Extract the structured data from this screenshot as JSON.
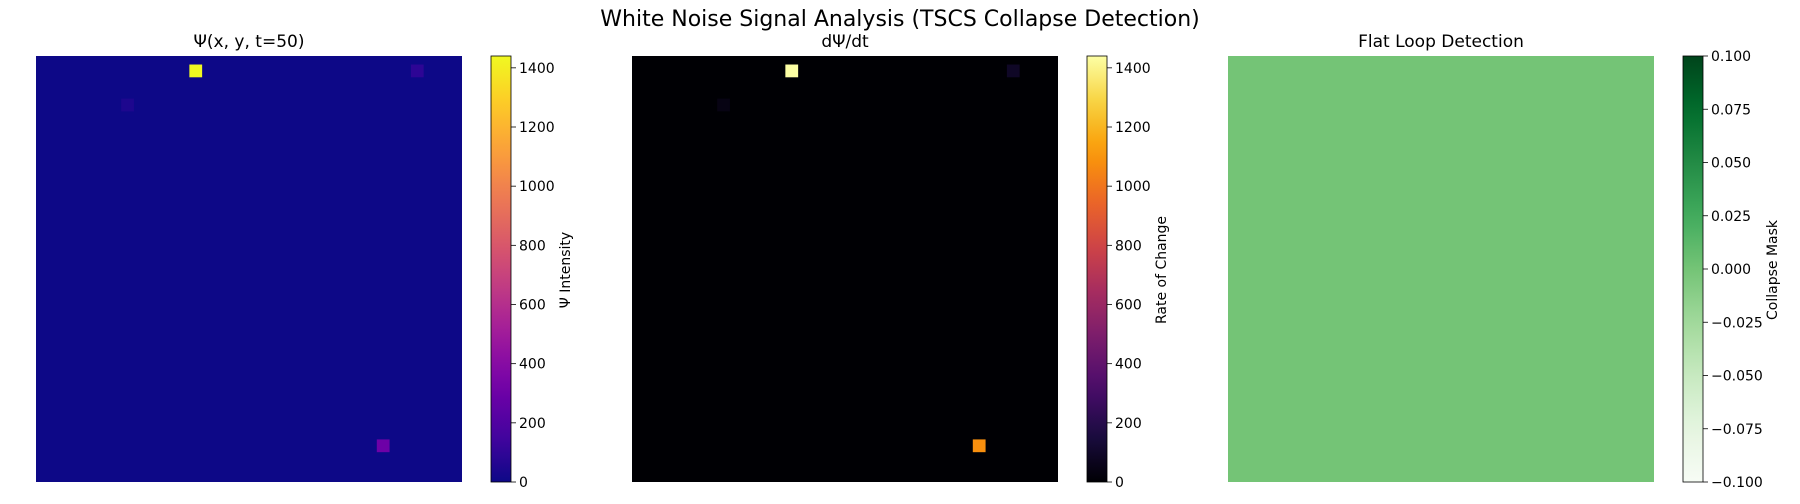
{
  "figure": {
    "title": "White Noise Signal Analysis (TSCS Collapse Detection)"
  },
  "chart_data": [
    {
      "type": "heatmap",
      "title": "Ψ(x, y, t=50)",
      "colormap": "plasma",
      "grid_size": [
        50,
        50
      ],
      "value_range": [
        0,
        1440
      ],
      "background_value": 0,
      "hot_cells": [
        {
          "col": 18,
          "row": 1,
          "value": 1440
        },
        {
          "col": 44,
          "row": 1,
          "value": 90
        },
        {
          "col": 10,
          "row": 5,
          "value": 45
        },
        {
          "col": 40,
          "row": 45,
          "value": 300
        }
      ],
      "colorbar": {
        "label": "Ψ Intensity",
        "ticks": [
          0,
          200,
          400,
          600,
          800,
          1000,
          1200,
          1400
        ],
        "tick_labels": [
          "0",
          "200",
          "400",
          "600",
          "800",
          "1000",
          "1200",
          "1400"
        ]
      }
    },
    {
      "type": "heatmap",
      "title": "dΨ/dt",
      "colormap": "inferno",
      "grid_size": [
        50,
        50
      ],
      "value_range": [
        0,
        1440
      ],
      "background_value": 0,
      "hot_cells": [
        {
          "col": 18,
          "row": 1,
          "value": 1440
        },
        {
          "col": 44,
          "row": 1,
          "value": 90
        },
        {
          "col": 10,
          "row": 5,
          "value": 40
        },
        {
          "col": 40,
          "row": 45,
          "value": 1080
        }
      ],
      "colorbar": {
        "label": "Rate of Change",
        "ticks": [
          0,
          200,
          400,
          600,
          800,
          1000,
          1200,
          1400
        ],
        "tick_labels": [
          "0",
          "200",
          "400",
          "600",
          "800",
          "1000",
          "1200",
          "1400"
        ]
      }
    },
    {
      "type": "heatmap",
      "title": "Flat Loop Detection",
      "colormap": "Greens",
      "grid_size": [
        50,
        50
      ],
      "value_range": [
        -0.1,
        0.1
      ],
      "background_value": 0,
      "hot_cells": [],
      "colorbar": {
        "label": "Collapse Mask",
        "ticks": [
          -0.1,
          -0.075,
          -0.05,
          -0.025,
          0,
          0.025,
          0.05,
          0.075,
          0.1
        ],
        "tick_labels": [
          "−0.100",
          "−0.075",
          "−0.050",
          "−0.025",
          "0.000",
          "0.025",
          "0.050",
          "0.075",
          "0.100"
        ]
      }
    }
  ]
}
